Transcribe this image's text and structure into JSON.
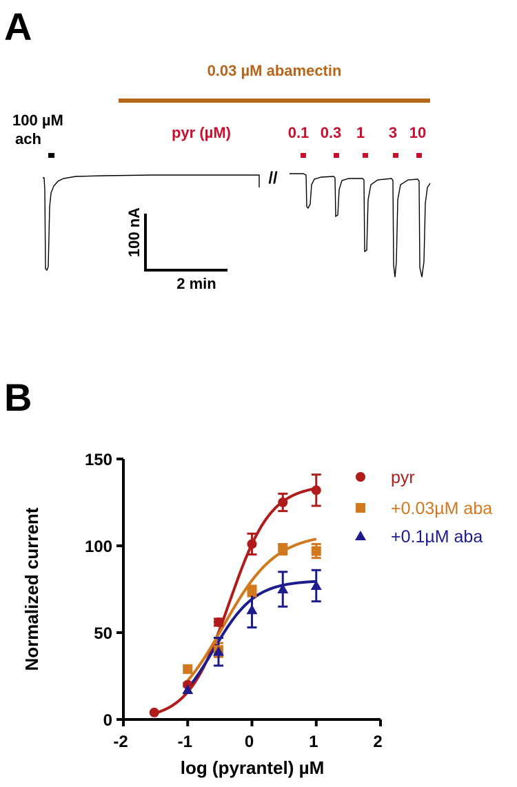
{
  "panel_a": {
    "letter": "A",
    "abamectin_label": "0.03 µM abamectin",
    "ach_label_line1": "100 µM",
    "ach_label_line2": "ach",
    "pyr_label": "pyr (µM)",
    "break_mark": "//",
    "concentrations": [
      "0.1",
      "0.3",
      "1",
      "3",
      "10"
    ],
    "scale_current": "100 nA",
    "scale_time": "2 min",
    "colors": {
      "abamectin": "#b8651a",
      "pyrantel": "#c8102e",
      "trace": "#000000"
    }
  },
  "panel_b": {
    "letter": "B"
  },
  "chart_data": {
    "type": "scatter",
    "xlabel": "log (pyrantel) µM",
    "ylabel": "Normalized current",
    "xlim": [
      -2,
      2
    ],
    "ylim": [
      0,
      150
    ],
    "xticks": [
      "-2",
      "-1",
      "0",
      "1",
      "2"
    ],
    "yticks": [
      "0",
      "50",
      "100",
      "150"
    ],
    "legend_position": "top-right",
    "grid": false,
    "series": [
      {
        "name": "pyr",
        "color": "#b01c1c",
        "marker": "circle",
        "x": [
          -1.52,
          -1.0,
          -0.52,
          0.0,
          0.48,
          1.0
        ],
        "y": [
          4,
          20,
          56,
          101,
          125,
          132
        ],
        "err": [
          0,
          1,
          2,
          6,
          5,
          9
        ],
        "fit": {
          "bottom": 0,
          "top": 135,
          "logEC50": -0.35,
          "hill": 1.35
        }
      },
      {
        "name": "+0.03µM aba",
        "color": "#d2781e",
        "marker": "square",
        "x": [
          -1.0,
          -0.52,
          0.0,
          0.48,
          1.0
        ],
        "y": [
          29,
          40,
          74,
          98,
          97
        ],
        "err": [
          0,
          4,
          3,
          3,
          4
        ],
        "fit": {
          "bottom": 0,
          "top": 107,
          "logEC50": -0.45,
          "hill": 1.05
        }
      },
      {
        "name": "+0.1µM aba",
        "color": "#1c1c8c",
        "marker": "triangle",
        "x": [
          -1.0,
          -0.52,
          0.0,
          0.48,
          1.0
        ],
        "y": [
          17,
          39,
          63,
          75,
          77
        ],
        "err": [
          0,
          8,
          10,
          10,
          9
        ],
        "fit": {
          "bottom": 0,
          "top": 80,
          "logEC50": -0.6,
          "hill": 1.35
        }
      }
    ]
  }
}
